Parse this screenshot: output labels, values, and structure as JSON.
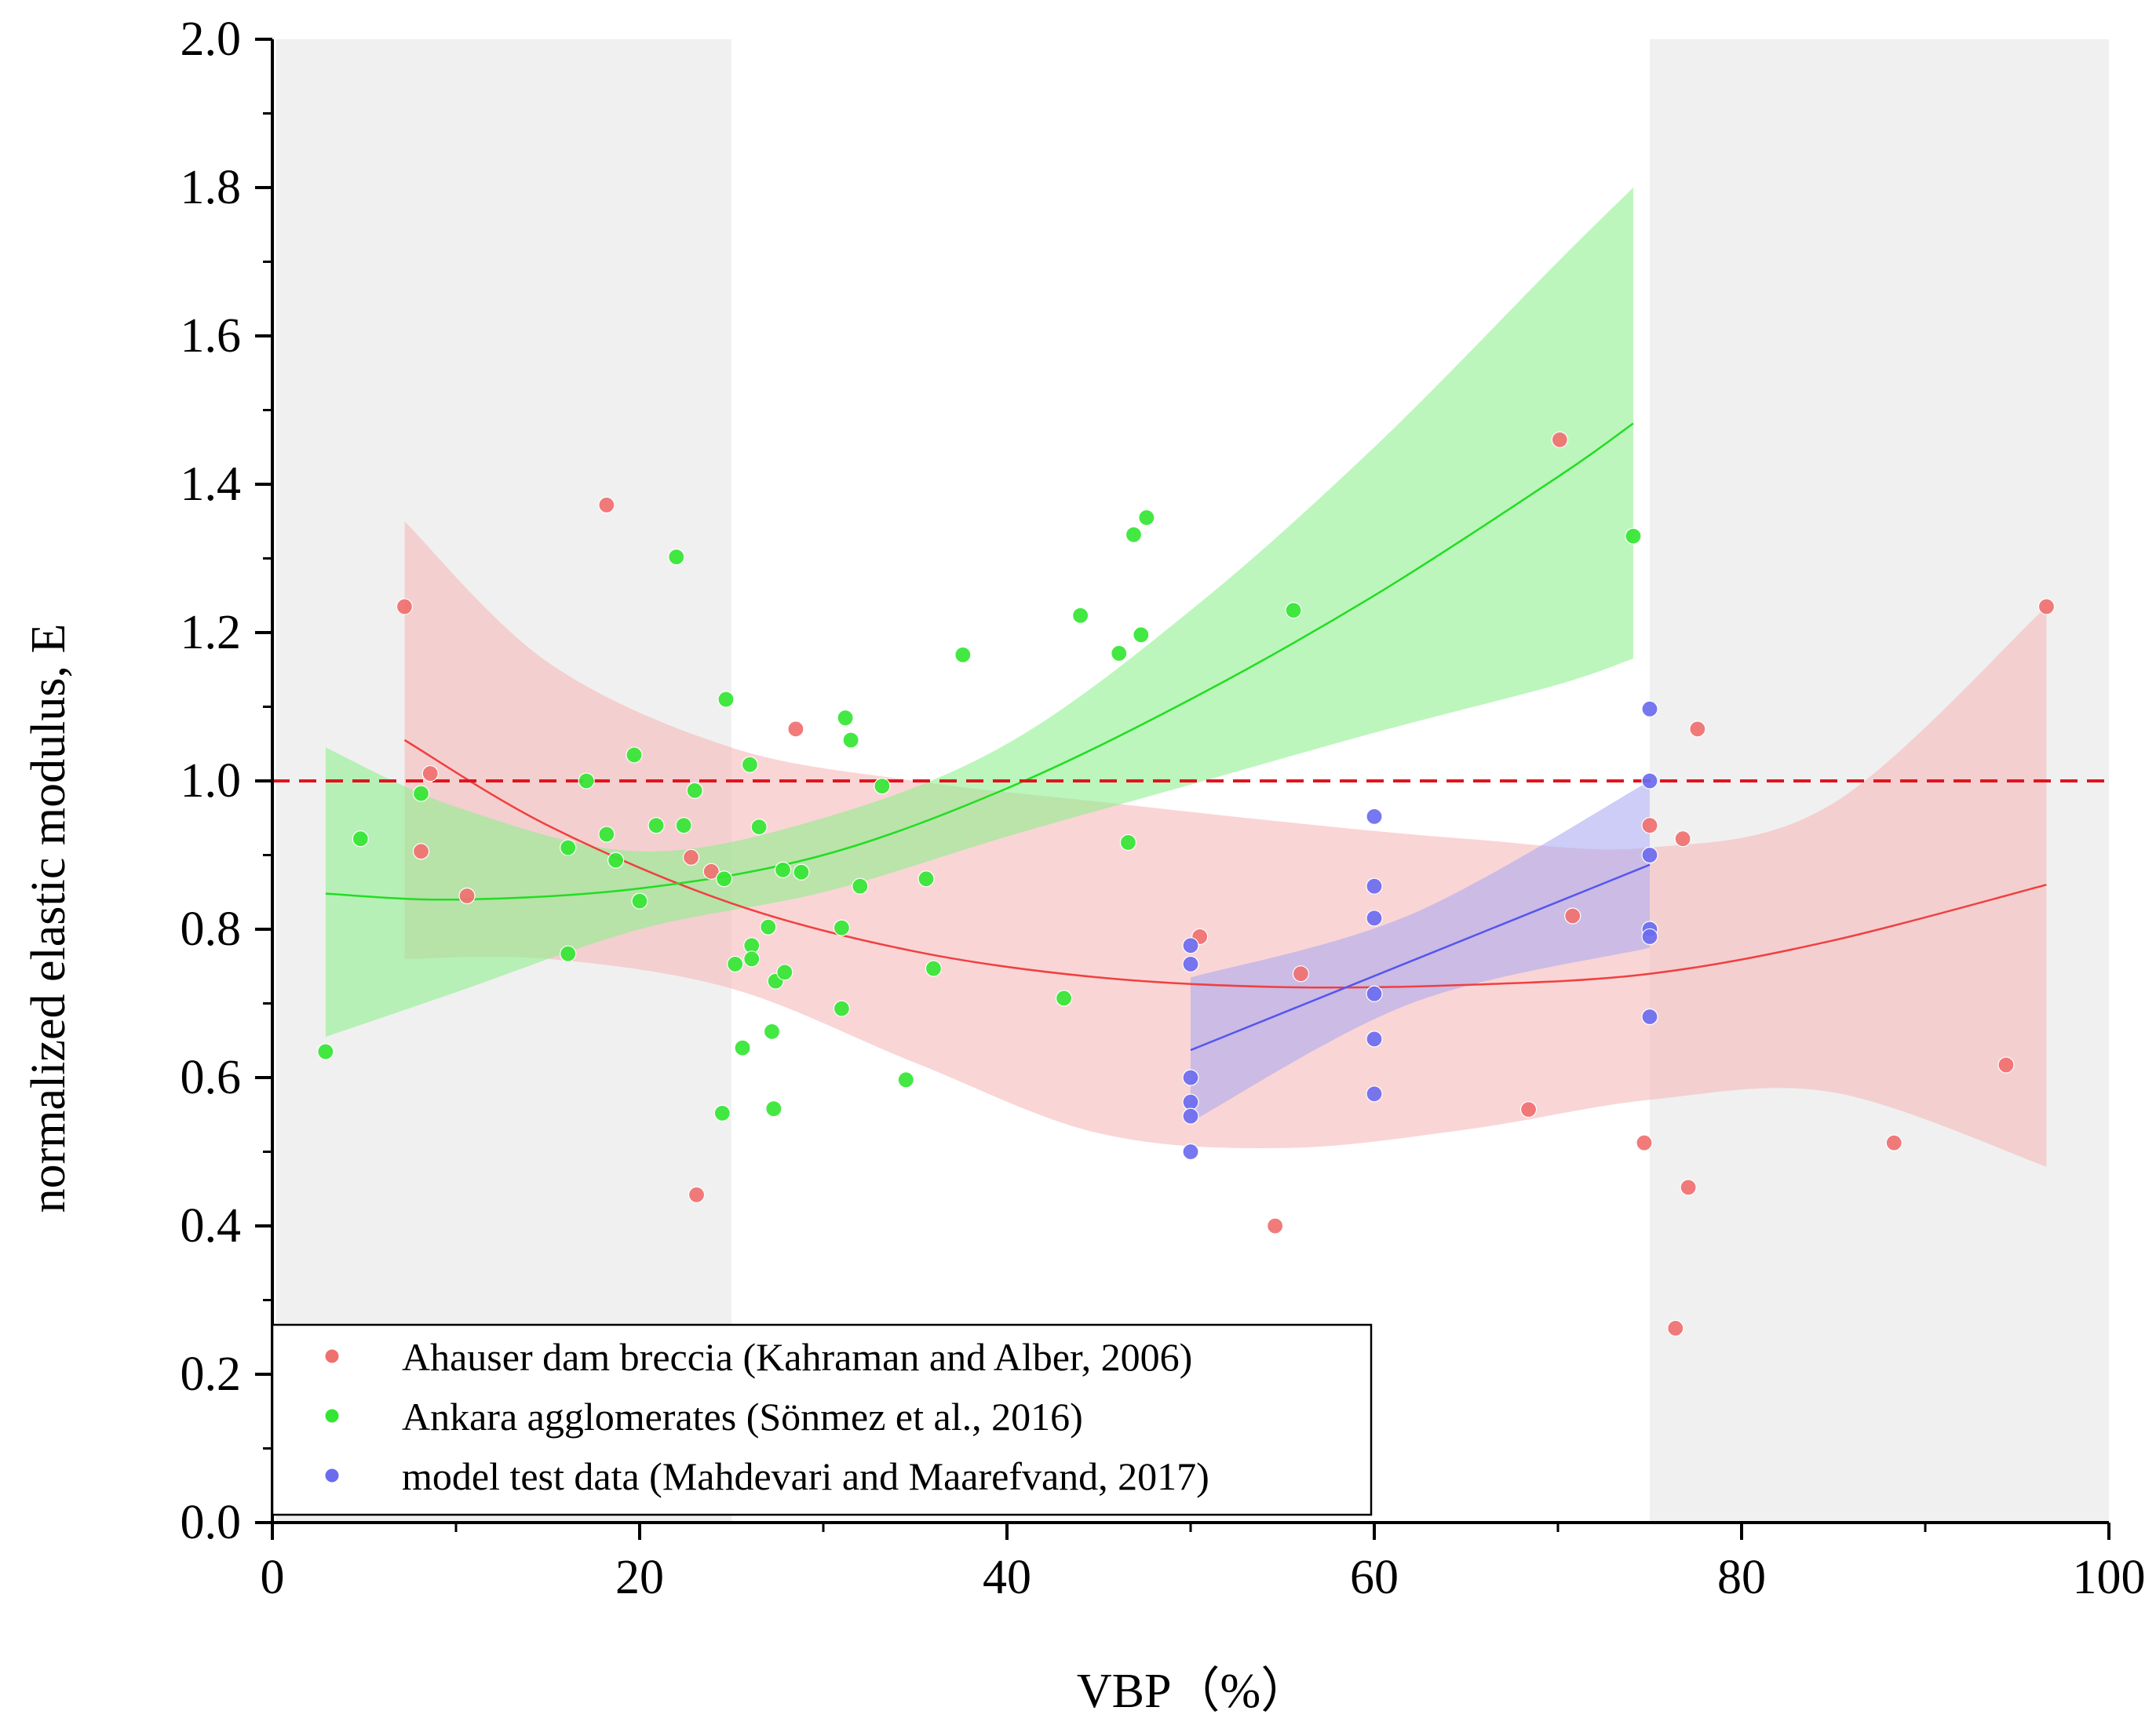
{
  "chart_data": {
    "type": "scatter",
    "title": "",
    "xlabel": "VBP（%）",
    "ylabel": "normalized elastic modulus, E",
    "xlim": [
      0,
      100
    ],
    "ylim": [
      0,
      2.0
    ],
    "xticks": [
      0,
      20,
      40,
      60,
      80,
      100
    ],
    "xtick_labels": [
      "0",
      "20",
      "40",
      "60",
      "80",
      "100"
    ],
    "yticks": [
      0,
      0.2,
      0.4,
      0.6,
      0.8,
      1.0,
      1.2,
      1.4,
      1.6,
      1.8,
      2.0
    ],
    "ytick_labels": [
      "0.0",
      "0.2",
      "0.4",
      "0.6",
      "0.8",
      "1.0",
      "1.2",
      "1.4",
      "1.6",
      "1.8",
      "2.0"
    ],
    "shaded_regions": [
      {
        "x0": 0.2,
        "x1": 25,
        "color": "#f0f0f0"
      },
      {
        "x0": 75,
        "x1": 100,
        "color": "#f0f0f0"
      }
    ],
    "reference_line": {
      "y": 1.0,
      "style": "dashed",
      "color": "#e0141e"
    },
    "legend_position": "bottom-left",
    "series": [
      {
        "name": "Ahauser dam breccia (Kahraman and Alber, 2006)",
        "point_color": "#f07070",
        "line_color": "#f04040",
        "band_color": "#f7b6b6",
        "points": [
          [
            7.2,
            1.235
          ],
          [
            8.1,
            0.905
          ],
          [
            8.6,
            1.01
          ],
          [
            10.6,
            0.845
          ],
          [
            18.2,
            1.372
          ],
          [
            22.8,
            0.897
          ],
          [
            23.1,
            0.442
          ],
          [
            23.9,
            0.878
          ],
          [
            28.5,
            1.07
          ],
          [
            50.5,
            0.79
          ],
          [
            54.6,
            0.4
          ],
          [
            56.0,
            0.74
          ],
          [
            68.4,
            0.557
          ],
          [
            70.1,
            1.46
          ],
          [
            70.8,
            0.818
          ],
          [
            74.7,
            0.512
          ],
          [
            75.0,
            0.94
          ],
          [
            76.4,
            0.262
          ],
          [
            76.8,
            0.922
          ],
          [
            77.1,
            0.452
          ],
          [
            77.6,
            1.07
          ],
          [
            88.3,
            0.512
          ],
          [
            94.4,
            0.617
          ],
          [
            96.6,
            1.235
          ]
        ],
        "fit": [
          [
            7.2,
            1.055
          ],
          [
            15,
            0.94
          ],
          [
            25,
            0.835
          ],
          [
            35,
            0.77
          ],
          [
            45,
            0.735
          ],
          [
            55,
            0.722
          ],
          [
            65,
            0.725
          ],
          [
            75,
            0.74
          ],
          [
            85,
            0.785
          ],
          [
            96.6,
            0.86
          ]
        ],
        "band_upper": [
          [
            7.2,
            1.35
          ],
          [
            15,
            1.16
          ],
          [
            25,
            1.045
          ],
          [
            35,
            1.0
          ],
          [
            45,
            0.972
          ],
          [
            55,
            0.945
          ],
          [
            65,
            0.922
          ],
          [
            75,
            0.91
          ],
          [
            85,
            0.97
          ],
          [
            96.6,
            1.235
          ]
        ],
        "band_lower": [
          [
            7.2,
            0.76
          ],
          [
            15,
            0.76
          ],
          [
            25,
            0.72
          ],
          [
            35,
            0.62
          ],
          [
            45,
            0.525
          ],
          [
            55,
            0.505
          ],
          [
            65,
            0.53
          ],
          [
            75,
            0.57
          ],
          [
            85,
            0.58
          ],
          [
            96.6,
            0.48
          ]
        ]
      },
      {
        "name": "Ankara agglomerates (Sönmez et al., 2016)",
        "point_color": "#33e633",
        "line_color": "#22dd22",
        "band_color": "#8cf08c",
        "points": [
          [
            2.9,
            0.635
          ],
          [
            4.8,
            0.922
          ],
          [
            8.1,
            0.983
          ],
          [
            16.1,
            0.91
          ],
          [
            16.1,
            0.767
          ],
          [
            17.1,
            1.0
          ],
          [
            18.2,
            0.928
          ],
          [
            18.7,
            0.893
          ],
          [
            19.7,
            1.035
          ],
          [
            20.0,
            0.838
          ],
          [
            20.9,
            0.94
          ],
          [
            22.0,
            1.302
          ],
          [
            22.4,
            0.94
          ],
          [
            23.0,
            0.987
          ],
          [
            24.5,
            0.552
          ],
          [
            24.6,
            0.868
          ],
          [
            24.7,
            1.11
          ],
          [
            25.2,
            0.753
          ],
          [
            25.6,
            0.64
          ],
          [
            26.0,
            1.022
          ],
          [
            26.1,
            0.778
          ],
          [
            26.1,
            0.76
          ],
          [
            26.5,
            0.938
          ],
          [
            27.0,
            0.803
          ],
          [
            27.2,
            0.662
          ],
          [
            27.3,
            0.558
          ],
          [
            27.4,
            0.73
          ],
          [
            27.8,
            0.88
          ],
          [
            27.9,
            0.742
          ],
          [
            28.8,
            0.877
          ],
          [
            31.0,
            0.693
          ],
          [
            31.0,
            0.802
          ],
          [
            31.2,
            1.085
          ],
          [
            31.5,
            1.055
          ],
          [
            32.0,
            0.858
          ],
          [
            33.2,
            0.993
          ],
          [
            34.5,
            0.597
          ],
          [
            35.6,
            0.868
          ],
          [
            36.0,
            0.747
          ],
          [
            37.6,
            1.17
          ],
          [
            43.1,
            0.707
          ],
          [
            44.0,
            1.223
          ],
          [
            46.1,
            1.172
          ],
          [
            46.6,
            0.917
          ],
          [
            46.9,
            1.332
          ],
          [
            47.3,
            1.197
          ],
          [
            47.6,
            1.355
          ],
          [
            55.6,
            1.23
          ],
          [
            74.1,
            1.33
          ]
        ],
        "fit": [
          [
            2.9,
            0.848
          ],
          [
            10,
            0.84
          ],
          [
            20,
            0.855
          ],
          [
            30,
            0.9
          ],
          [
            40,
            0.99
          ],
          [
            50,
            1.11
          ],
          [
            60,
            1.25
          ],
          [
            70,
            1.41
          ],
          [
            74.1,
            1.482
          ]
        ],
        "band_upper": [
          [
            2.9,
            1.045
          ],
          [
            10,
            0.965
          ],
          [
            20,
            0.905
          ],
          [
            30,
            0.95
          ],
          [
            40,
            1.05
          ],
          [
            50,
            1.23
          ],
          [
            60,
            1.45
          ],
          [
            70,
            1.7
          ],
          [
            74.1,
            1.8
          ]
        ],
        "band_lower": [
          [
            2.9,
            0.655
          ],
          [
            10,
            0.715
          ],
          [
            20,
            0.8
          ],
          [
            30,
            0.85
          ],
          [
            40,
            0.925
          ],
          [
            50,
            0.995
          ],
          [
            60,
            1.065
          ],
          [
            70,
            1.13
          ],
          [
            74.1,
            1.165
          ]
        ]
      },
      {
        "name": "model test data (Mahdevari and Maarefvand, 2017)",
        "point_color": "#6b6bf0",
        "line_color": "#5555ee",
        "band_color": "#a9a9f2",
        "points": [
          [
            50,
            0.778
          ],
          [
            50,
            0.753
          ],
          [
            50,
            0.6
          ],
          [
            50,
            0.567
          ],
          [
            50,
            0.548
          ],
          [
            50,
            0.5
          ],
          [
            60,
            0.952
          ],
          [
            60,
            0.858
          ],
          [
            60,
            0.815
          ],
          [
            60,
            0.713
          ],
          [
            60,
            0.652
          ],
          [
            60,
            0.578
          ],
          [
            75,
            1.097
          ],
          [
            75,
            1.0
          ],
          [
            75,
            0.9
          ],
          [
            75,
            0.8
          ],
          [
            75,
            0.79
          ],
          [
            75,
            0.682
          ]
        ],
        "fit": [
          [
            50,
            0.637
          ],
          [
            75,
            0.887
          ]
        ],
        "band_upper": [
          [
            50,
            0.735
          ],
          [
            62,
            0.82
          ],
          [
            75,
            1.0
          ]
        ],
        "band_lower": [
          [
            50,
            0.54
          ],
          [
            62,
            0.7
          ],
          [
            75,
            0.775
          ]
        ]
      }
    ]
  }
}
